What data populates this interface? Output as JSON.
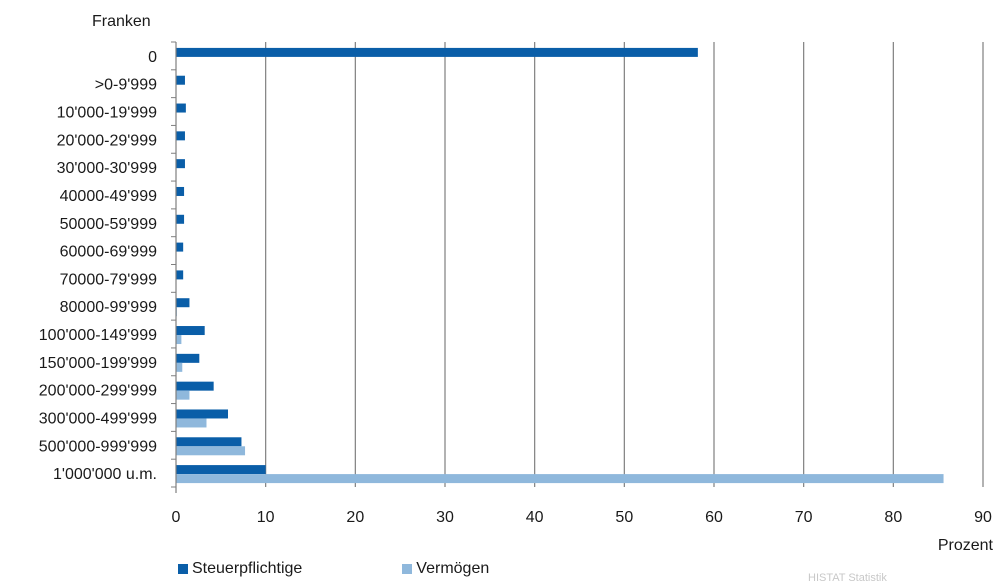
{
  "chart_data": {
    "type": "bar",
    "orientation": "horizontal",
    "y_axis_title": "Franken",
    "x_axis_title": "Prozent",
    "categories": [
      "0",
      ">0-9'999",
      "10'000-19'999",
      "20'000-29'999",
      "30'000-30'999",
      "40000-49'999",
      "50000-59'999",
      "60000-69'999",
      "70000-79'999",
      "80000-99'999",
      "100'000-149'999",
      "150'000-199'999",
      "200'000-299'999",
      "300'000-499'999",
      "500'000-999'999",
      "1'000'000 u.m."
    ],
    "series": [
      {
        "name": "Steuerpflichtige",
        "color": "#0a5ea8",
        "values": [
          58.2,
          1.0,
          1.1,
          1.0,
          1.0,
          0.9,
          0.9,
          0.8,
          0.8,
          1.5,
          3.2,
          2.6,
          4.2,
          5.8,
          7.3,
          10.0
        ]
      },
      {
        "name": "Vermögen",
        "color": "#8fb8dc",
        "values": [
          0,
          0,
          0,
          0,
          0,
          0,
          0,
          0,
          0,
          0.1,
          0.6,
          0.7,
          1.5,
          3.4,
          7.7,
          85.6
        ]
      }
    ],
    "xlim": [
      0,
      90
    ],
    "xticks": [
      0,
      10,
      20,
      30,
      40,
      50,
      60,
      70,
      80,
      90
    ],
    "grid": "vertical",
    "legend_position": "bottom-left"
  },
  "source_note": "HISTAT Statistik"
}
